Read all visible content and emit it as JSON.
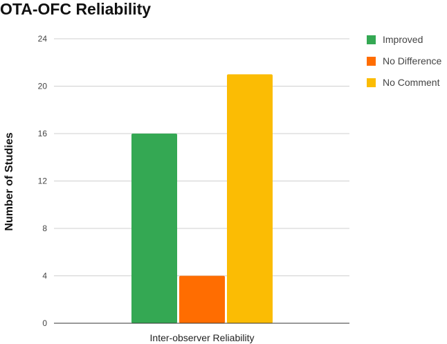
{
  "chart_data": {
    "type": "bar",
    "title": "OTA-OFC Reliability",
    "xlabel": "",
    "ylabel": "Number of Studies",
    "categories": [
      "Inter-observer Reliability"
    ],
    "series": [
      {
        "name": "Improved",
        "values": [
          16
        ],
        "color": "#34a853"
      },
      {
        "name": "No Difference",
        "values": [
          4
        ],
        "color": "#ff6d01"
      },
      {
        "name": "No Comment",
        "values": [
          21
        ],
        "color": "#fbbc04"
      }
    ],
    "ylim": [
      0,
      24
    ],
    "yticks": [
      "0",
      "4",
      "8",
      "12",
      "16",
      "20",
      "24"
    ],
    "grid": true,
    "legend": "right"
  }
}
